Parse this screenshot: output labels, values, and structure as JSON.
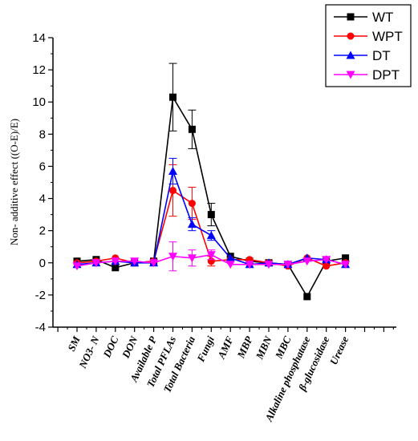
{
  "chart_data": {
    "type": "line",
    "title": "",
    "xlabel": "",
    "ylabel": "Non- additive effect ((O-E)/E)",
    "ylim": [
      -4,
      14
    ],
    "yticks": [
      -4,
      -2,
      0,
      2,
      4,
      6,
      8,
      10,
      12,
      14
    ],
    "grid": false,
    "legend_position": "top-right",
    "categories": [
      "SM",
      "NO3- N",
      "DOC",
      "DON",
      "Available P",
      "Total PFLAs",
      "Total Bacteria",
      "Fungi",
      "AMF",
      "MBP",
      "MBN",
      "MBC",
      "Alkaline phosphatase",
      "β-glucosidase",
      "Urease"
    ],
    "series": [
      {
        "name": "WT",
        "color": "#000000",
        "marker": "square",
        "values": [
          0.1,
          0.2,
          -0.3,
          0.0,
          0.1,
          10.3,
          8.3,
          3.0,
          0.4,
          0.1,
          0.0,
          -0.1,
          -2.1,
          0.1,
          0.3
        ],
        "errors": [
          0,
          0,
          0,
          0,
          0,
          2.1,
          1.2,
          0.7,
          0,
          0,
          0,
          0,
          0,
          0,
          0
        ]
      },
      {
        "name": "WPT",
        "color": "#ff0000",
        "marker": "circle",
        "values": [
          0.0,
          0.1,
          0.3,
          0.0,
          0.1,
          4.5,
          3.7,
          0.1,
          0.2,
          0.2,
          0.0,
          -0.2,
          0.3,
          -0.2,
          0.0
        ],
        "errors": [
          0,
          0,
          0,
          0,
          0,
          1.6,
          1.0,
          0.3,
          0,
          0,
          0,
          0,
          0,
          0,
          0
        ]
      },
      {
        "name": "DT",
        "color": "#0000ff",
        "marker": "triangle-up",
        "values": [
          -0.1,
          0.0,
          0.1,
          0.0,
          0.0,
          5.7,
          2.4,
          1.7,
          0.3,
          -0.1,
          0.0,
          -0.1,
          0.3,
          0.2,
          -0.1
        ],
        "errors": [
          0,
          0,
          0,
          0,
          0,
          0.8,
          0.4,
          0.3,
          0,
          0,
          0,
          0,
          0,
          0,
          0
        ]
      },
      {
        "name": "DPT",
        "color": "#ff00ff",
        "marker": "triangle-down",
        "values": [
          -0.2,
          0.0,
          0.1,
          0.1,
          0.0,
          0.4,
          0.3,
          0.5,
          -0.1,
          -0.1,
          -0.1,
          -0.1,
          0.1,
          0.2,
          -0.1
        ],
        "errors": [
          0,
          0,
          0,
          0,
          0,
          0.9,
          0.5,
          0.3,
          0,
          0,
          0,
          0,
          0,
          0,
          0
        ]
      }
    ]
  }
}
